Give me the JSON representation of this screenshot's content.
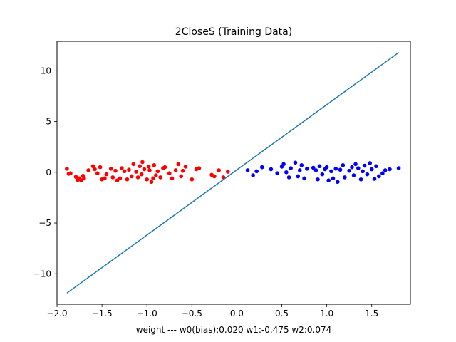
{
  "chart_data": {
    "type": "scatter",
    "title": "2CloseS (Training Data)",
    "xlabel": "weight  ---  w0(bias):0.020   w1:-0.475   w2:0.074",
    "ylabel": "",
    "xlim": [
      -2.0,
      1.93
    ],
    "ylim": [
      -13.0,
      12.9
    ],
    "xticks": [
      -2.0,
      -1.5,
      -1.0,
      -0.5,
      0.0,
      0.5,
      1.0,
      1.5
    ],
    "xtick_labels": [
      "−2.0",
      "−1.5",
      "−1.0",
      "−0.5",
      "0.0",
      "0.5",
      "1.0",
      "1.5"
    ],
    "yticks": [
      -10,
      -5,
      0,
      5,
      10
    ],
    "ytick_labels": [
      "−10",
      "−5",
      "0",
      "5",
      "10"
    ],
    "grid": false,
    "colors": {
      "class_neg": "#ff0000",
      "class_pos": "#0000ff",
      "boundary": "#1f77b4"
    },
    "series": [
      {
        "kind": "points",
        "color": "#ff0000",
        "x": [
          -1.89,
          -1.87,
          -1.85,
          -1.79,
          -1.77,
          -1.75,
          -1.73,
          -1.71,
          -1.7,
          -1.65,
          -1.6,
          -1.58,
          -1.55,
          -1.52,
          -1.5,
          -1.47,
          -1.45,
          -1.4,
          -1.38,
          -1.35,
          -1.33,
          -1.3,
          -1.28,
          -1.25,
          -1.22,
          -1.2,
          -1.17,
          -1.15,
          -1.12,
          -1.1,
          -1.08,
          -1.06,
          -1.05,
          -1.03,
          -1.0,
          -0.98,
          -0.97,
          -0.95,
          -0.93,
          -0.92,
          -0.9,
          -0.88,
          -0.85,
          -0.82,
          -0.8,
          -0.75,
          -0.72,
          -0.68,
          -0.65,
          -0.62,
          -0.6,
          -0.57,
          -0.5,
          -0.45,
          -0.42,
          -0.28,
          -0.25,
          -0.2,
          -0.15,
          -0.1
        ],
        "y": [
          0.35,
          -0.15,
          -0.1,
          -0.45,
          -0.75,
          -0.6,
          -0.8,
          -0.35,
          -0.6,
          0.2,
          0.6,
          0.3,
          -0.1,
          0.5,
          -0.7,
          -0.6,
          -0.2,
          0.35,
          -0.5,
          0.15,
          -0.8,
          -0.6,
          0.4,
          0.1,
          -0.7,
          0.25,
          -0.4,
          0.8,
          0.05,
          -0.5,
          0.6,
          -0.2,
          1.0,
          0.3,
          -0.7,
          0.55,
          0.2,
          -0.95,
          -0.6,
          0.7,
          -0.3,
          0.1,
          -0.5,
          0.4,
          0.5,
          -0.1,
          -0.6,
          0.2,
          0.8,
          -0.4,
          0.15,
          0.55,
          -0.7,
          0.3,
          0.4,
          -0.25,
          -0.4,
          0.2,
          -0.5,
          0.05
        ]
      },
      {
        "kind": "points",
        "color": "#0000ff",
        "x": [
          0.12,
          0.18,
          0.22,
          0.28,
          0.38,
          0.45,
          0.5,
          0.52,
          0.55,
          0.58,
          0.6,
          0.65,
          0.68,
          0.7,
          0.72,
          0.75,
          0.78,
          0.85,
          0.88,
          0.9,
          0.92,
          0.95,
          0.98,
          1.0,
          1.02,
          1.05,
          1.07,
          1.1,
          1.12,
          1.15,
          1.18,
          1.2,
          1.25,
          1.28,
          1.3,
          1.32,
          1.35,
          1.38,
          1.4,
          1.42,
          1.45,
          1.48,
          1.5,
          1.53,
          1.55,
          1.58,
          1.62,
          1.65,
          1.7,
          1.8
        ],
        "y": [
          0.2,
          -0.3,
          0.1,
          0.5,
          0.3,
          -0.1,
          0.55,
          0.8,
          0.0,
          -0.5,
          0.4,
          0.95,
          -0.4,
          0.2,
          0.7,
          -0.6,
          0.35,
          0.45,
          0.2,
          -0.7,
          0.6,
          -0.2,
          0.3,
          0.5,
          -0.8,
          0.1,
          -0.6,
          0.35,
          -0.95,
          0.25,
          0.7,
          -0.5,
          0.15,
          0.5,
          -0.3,
          0.8,
          0.4,
          -0.7,
          0.1,
          0.65,
          -0.2,
          0.9,
          0.3,
          -0.65,
          0.6,
          -0.4,
          -0.1,
          0.2,
          0.3,
          0.4
        ]
      },
      {
        "kind": "line",
        "color": "#1f77b4",
        "x": [
          -1.89,
          1.8
        ],
        "y": [
          -11.9,
          11.8
        ]
      }
    ]
  }
}
